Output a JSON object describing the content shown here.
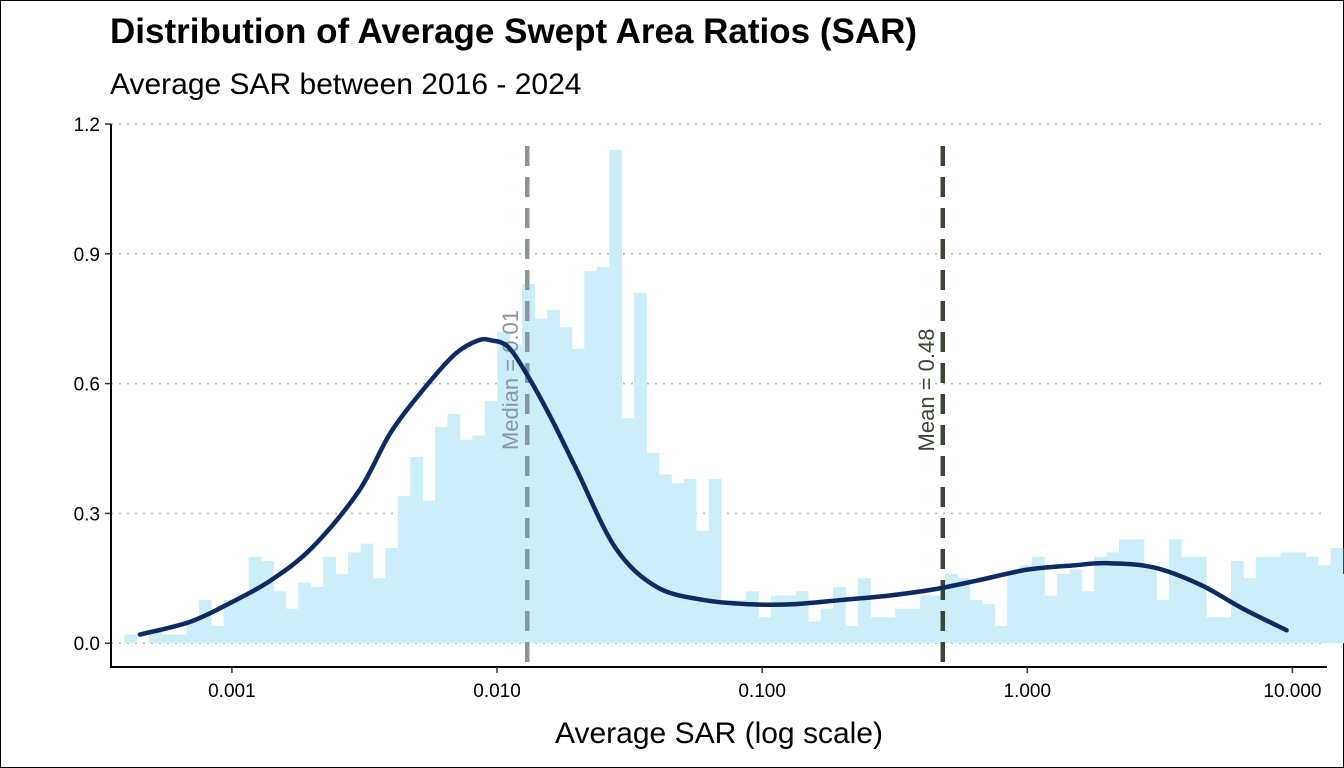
{
  "chart_data": {
    "type": "histogram",
    "title": "Distribution of Average Swept Area Ratios (SAR)",
    "subtitle": "Average SAR between 2016 - 2024",
    "xlabel": "Average SAR (log scale)",
    "ylabel": "",
    "x_scale": "log10",
    "xlim": [
      0.00035,
      13.5
    ],
    "ylim": [
      -0.055,
      1.2
    ],
    "x_ticks": [
      0.001,
      0.01,
      0.1,
      1,
      10
    ],
    "x_tick_labels": [
      "0.001",
      "0.010",
      "0.100",
      "1.000",
      "10.000"
    ],
    "y_ticks": [
      0,
      0.3,
      0.6,
      0.9,
      1.2
    ],
    "y_tick_labels": [
      "0.0",
      "0.3",
      "0.6",
      "0.9",
      "1.2"
    ],
    "grid": "horizontal dotted",
    "histogram": {
      "log_start": -3.406,
      "bin_width_log10": 0.0469,
      "heights": [
        0.02,
        0.0,
        0.03,
        0.02,
        0.02,
        0.05,
        0.1,
        0.04,
        0.1,
        0.11,
        0.2,
        0.19,
        0.12,
        0.08,
        0.14,
        0.13,
        0.2,
        0.16,
        0.21,
        0.23,
        0.15,
        0.22,
        0.34,
        0.43,
        0.33,
        0.5,
        0.53,
        0.47,
        0.48,
        0.56,
        0.72,
        0.69,
        0.83,
        0.75,
        0.77,
        0.73,
        0.68,
        0.86,
        0.87,
        1.14,
        0.52,
        0.81,
        0.44,
        0.39,
        0.37,
        0.38,
        0.26,
        0.38,
        0.1,
        0.1,
        0.12,
        0.06,
        0.11,
        0.11,
        0.12,
        0.05,
        0.08,
        0.13,
        0.04,
        0.15,
        0.06,
        0.06,
        0.08,
        0.08,
        0.11,
        0.11,
        0.16,
        0.15,
        0.1,
        0.09,
        0.04,
        0.16,
        0.18,
        0.2,
        0.11,
        0.16,
        0.17,
        0.12,
        0.2,
        0.21,
        0.24,
        0.24,
        0.18,
        0.1,
        0.24,
        0.2,
        0.2,
        0.06,
        0.06,
        0.19,
        0.15,
        0.2,
        0.2,
        0.21,
        0.21,
        0.2,
        0.18,
        0.22,
        0.16,
        0.09,
        0.17,
        0.27,
        0.15,
        0.22,
        0.15,
        0.14,
        0.15,
        0.17,
        0.04,
        0.06,
        0.02,
        0.02
      ]
    },
    "density": {
      "name": "",
      "x": [
        0.00045,
        0.0007,
        0.001,
        0.0014,
        0.002,
        0.003,
        0.004,
        0.0055,
        0.007,
        0.0085,
        0.0095,
        0.011,
        0.013,
        0.016,
        0.02,
        0.028,
        0.04,
        0.06,
        0.09,
        0.13,
        0.2,
        0.3,
        0.45,
        0.65,
        1.0,
        1.5,
        2.0,
        3.0,
        4.5,
        6.5,
        9.5
      ],
      "y": [
        0.02,
        0.05,
        0.095,
        0.145,
        0.22,
        0.35,
        0.49,
        0.6,
        0.67,
        0.7,
        0.7,
        0.685,
        0.62,
        0.52,
        0.4,
        0.22,
        0.13,
        0.1,
        0.09,
        0.09,
        0.1,
        0.11,
        0.125,
        0.145,
        0.17,
        0.18,
        0.185,
        0.175,
        0.135,
        0.08,
        0.03
      ]
    },
    "vlines": [
      {
        "label": "Median = 0.01",
        "x": 0.013
      },
      {
        "label": "Mean =  0.48",
        "x": 0.48
      }
    ],
    "colors": {
      "bars": "#cbeef9",
      "density": "#0d2b62",
      "median_line": "#8a959d",
      "median_text": "#8a959d",
      "mean_line": "#3a4634",
      "mean_text": "#3a4634",
      "grid": "#b3b3b3"
    }
  }
}
